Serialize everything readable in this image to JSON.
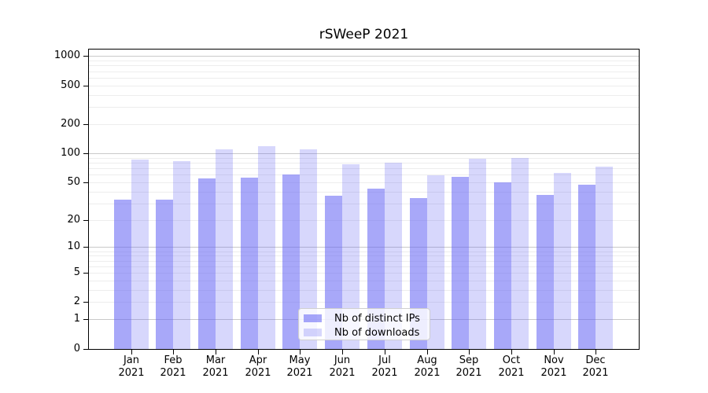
{
  "chart_data": {
    "type": "bar",
    "title": "rSWeeP 2021",
    "categories": [
      "Jan",
      "Feb",
      "Mar",
      "Apr",
      "May",
      "Jun",
      "Jul",
      "Aug",
      "Sep",
      "Oct",
      "Nov",
      "Dec"
    ],
    "x_tick_second_line": "2021",
    "series": [
      {
        "name": "Nb of distinct IPs",
        "color": "rgba(97,97,244,0.55)",
        "values": [
          33,
          33,
          55,
          56,
          60,
          36,
          43,
          34,
          57,
          50,
          37,
          47
        ]
      },
      {
        "name": "Nb of downloads",
        "color": "rgba(97,97,244,0.25)",
        "values": [
          86,
          83,
          109,
          118,
          109,
          77,
          80,
          59,
          87,
          90,
          63,
          73
        ]
      }
    ],
    "y_ticks": [
      0,
      1,
      2,
      5,
      10,
      20,
      50,
      100,
      200,
      500,
      1000
    ],
    "y_scale": "log1p",
    "ylim": [
      0,
      1000
    ],
    "grid": "on",
    "legend_position": "inside-bottom-center",
    "colors": {
      "bar_distinct_ips_rendered": "#a9a9f8",
      "bar_downloads_rendered": "#d8d8fa",
      "grid_major": "#c9c9c9",
      "grid_minor": "#ededed",
      "axis": "#000000",
      "background": "#ffffff"
    }
  }
}
